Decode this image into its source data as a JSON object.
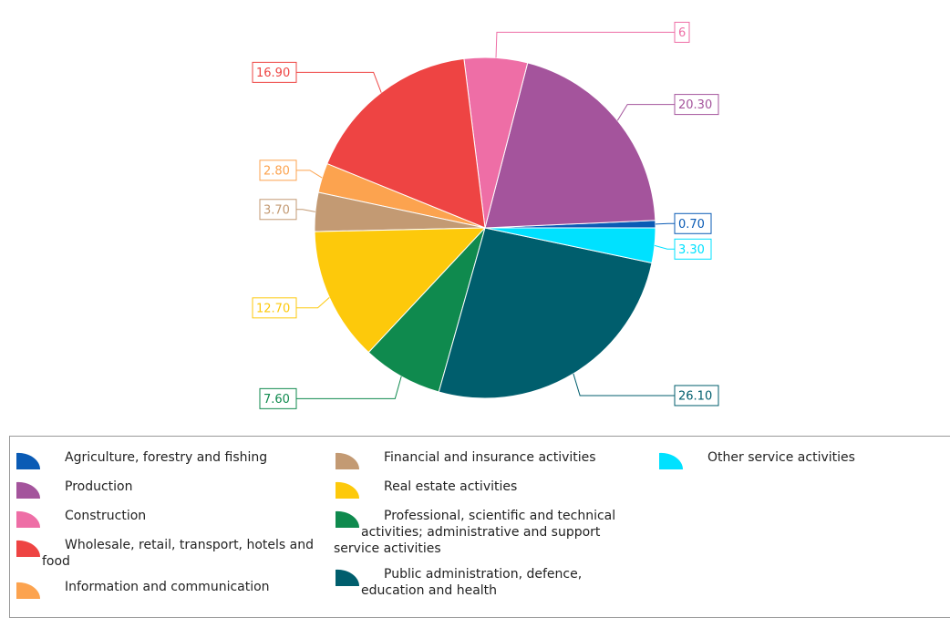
{
  "chart_data": {
    "type": "pie",
    "categories": [
      "Agriculture, forestry and fishing",
      "Production",
      "Construction",
      "Wholesale, retail, transport, hotels and food",
      "Information and communication",
      "Financial and insurance activities",
      "Real estate activities",
      "Professional, scientific and technical activities; administrative and support service activities",
      "Public administration, defence, education and health",
      "Other service activities"
    ],
    "values": [
      0.7,
      20.3,
      6,
      16.9,
      2.8,
      3.7,
      12.7,
      7.6,
      26.1,
      3.3
    ],
    "value_labels": [
      "0.70",
      "20.30",
      "6",
      "16.90",
      "2.80",
      "3.70",
      "12.70",
      "7.60",
      "26.10",
      "3.30"
    ],
    "colors": [
      "#0a5bb5",
      "#a4549c",
      "#ee6ea6",
      "#ee4443",
      "#fca34f",
      "#c39a73",
      "#fdc90b",
      "#0f8a4e",
      "#005e6d",
      "#00e1ff"
    ],
    "legend": "bottom"
  }
}
